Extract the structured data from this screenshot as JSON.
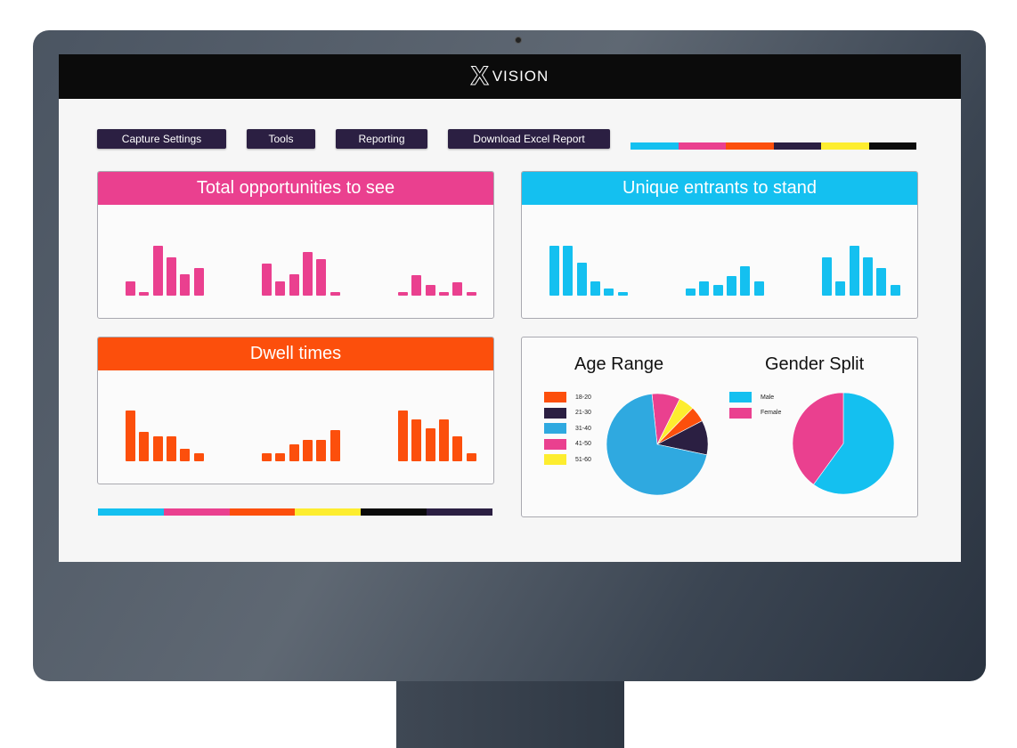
{
  "header": {
    "logo_mark": "X",
    "logo_text": "VISION"
  },
  "toolbar": {
    "buttons": [
      "Capture Settings",
      "Tools",
      "Reporting",
      "Download Excel Report"
    ]
  },
  "palette": [
    "#14c0f0",
    "#ea408f",
    "#fc4f0c",
    "#2b1f42",
    "#fded2f",
    "#0b0b0b"
  ],
  "chart_data": [
    {
      "type": "bar",
      "title": "Total opportunities to see",
      "color": "#ea408f",
      "groups": [
        [
          16,
          4,
          56,
          43,
          24,
          31
        ],
        [
          36,
          16,
          24,
          49,
          41,
          4
        ],
        [
          4,
          23,
          12,
          4,
          15,
          4
        ]
      ]
    },
    {
      "type": "bar",
      "title": "Unique entrants to stand",
      "color": "#14c0f0",
      "groups": [
        [
          56,
          56,
          37,
          16,
          8,
          4
        ],
        [
          8,
          16,
          12,
          22,
          33,
          16
        ],
        [
          43,
          16,
          56,
          43,
          31,
          12
        ]
      ]
    },
    {
      "type": "bar",
      "title": "Dwell times",
      "color": "#fc4f0c",
      "groups": [
        [
          57,
          33,
          28,
          28,
          14,
          9
        ],
        [
          9,
          9,
          19,
          24,
          24,
          35
        ],
        [
          57,
          47,
          37,
          47,
          28,
          9
        ]
      ]
    },
    {
      "type": "pie",
      "title": "Age Range",
      "labels": [
        "18-20",
        "21-30",
        "31-40",
        "41-50",
        "51-60"
      ],
      "values": [
        5,
        11,
        70,
        9,
        5
      ],
      "colors": [
        "#fc4f0c",
        "#2b1f42",
        "#2fa9e0",
        "#ea408f",
        "#fded2f"
      ]
    },
    {
      "type": "pie",
      "title": "Gender Split",
      "labels": [
        "Male",
        "Female"
      ],
      "values": [
        60,
        40
      ],
      "colors": [
        "#14c0f0",
        "#ea408f"
      ]
    }
  ]
}
